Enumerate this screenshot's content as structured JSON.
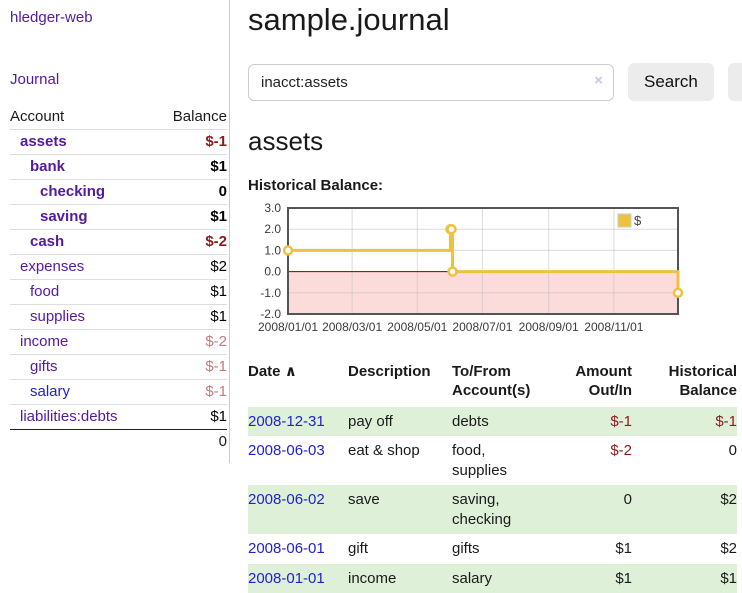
{
  "window": {
    "app_title": "hledger-web"
  },
  "colors": {
    "link_purple": "#541a9e",
    "link_blue": "#2222cc",
    "negative_strong": "#8c1b1b",
    "negative_soft": "#c47b7b",
    "row_stripe_green": "#dff0d8",
    "series_gold": "#edc240"
  },
  "sidebar": {
    "journal_label": "Journal",
    "table": {
      "headers": {
        "account": "Account",
        "balance": "Balance"
      },
      "rows": [
        {
          "name": "assets",
          "indent": 0,
          "bold": true,
          "blue": false,
          "balance": "$-1",
          "balance_style": "neg-strong"
        },
        {
          "name": "bank",
          "indent": 1,
          "bold": true,
          "blue": false,
          "balance": "$1",
          "balance_style": "pos"
        },
        {
          "name": "checking",
          "indent": 2,
          "bold": true,
          "blue": false,
          "balance": "0",
          "balance_style": "pos"
        },
        {
          "name": "saving",
          "indent": 2,
          "bold": true,
          "blue": false,
          "balance": "$1",
          "balance_style": "pos"
        },
        {
          "name": "cash",
          "indent": 1,
          "bold": true,
          "blue": false,
          "balance": "$-2",
          "balance_style": "neg-strong"
        },
        {
          "name": "expenses",
          "indent": 0,
          "bold": false,
          "blue": false,
          "balance": "$2",
          "balance_style": "pos"
        },
        {
          "name": "food",
          "indent": 1,
          "bold": false,
          "blue": false,
          "balance": "$1",
          "balance_style": "pos"
        },
        {
          "name": "supplies",
          "indent": 1,
          "bold": false,
          "blue": false,
          "balance": "$1",
          "balance_style": "pos"
        },
        {
          "name": "income",
          "indent": 0,
          "bold": false,
          "blue": false,
          "balance": "$-2",
          "balance_style": "neg-soft"
        },
        {
          "name": "gifts",
          "indent": 1,
          "bold": false,
          "blue": false,
          "balance": "$-1",
          "balance_style": "neg-soft"
        },
        {
          "name": "salary",
          "indent": 1,
          "bold": false,
          "blue": true,
          "balance": "$-1",
          "balance_style": "neg-soft"
        },
        {
          "name": "liabilities:debts",
          "indent": 0,
          "bold": false,
          "blue": false,
          "balance": "$1",
          "balance_style": "pos"
        }
      ],
      "total": "0"
    }
  },
  "main": {
    "title": "sample.journal",
    "search": {
      "value": "inacct:assets",
      "clear_icon": "×",
      "button_label": "Search",
      "help_label": "?"
    },
    "account_heading": "assets",
    "chart_heading": "Historical Balance:"
  },
  "chart_data": {
    "type": "line",
    "step": true,
    "title": "Historical Balance:",
    "xlabel": "",
    "ylabel": "",
    "ylim": [
      -2,
      3
    ],
    "xlim_days": [
      0,
      365
    ],
    "x_ticks": [
      {
        "label": "2008/01/01",
        "day": 0
      },
      {
        "label": "2008/03/01",
        "day": 60
      },
      {
        "label": "2008/05/01",
        "day": 121
      },
      {
        "label": "2008/07/01",
        "day": 182
      },
      {
        "label": "2008/09/01",
        "day": 244
      },
      {
        "label": "2008/11/01",
        "day": 305
      }
    ],
    "y_ticks": [
      {
        "label": "3.0",
        "value": 3
      },
      {
        "label": "2.0",
        "value": 2
      },
      {
        "label": "1.0",
        "value": 1
      },
      {
        "label": "0.0",
        "value": 0
      },
      {
        "label": "-1.0",
        "value": -1
      },
      {
        "label": "-2.0",
        "value": -2
      }
    ],
    "series": [
      {
        "name": "$",
        "color": "#edc240",
        "points": [
          {
            "date": "2008-01-01",
            "day": 0,
            "value": 1
          },
          {
            "date": "2008-06-01",
            "day": 152,
            "value": 2
          },
          {
            "date": "2008-06-02",
            "day": 153,
            "value": 2
          },
          {
            "date": "2008-06-03",
            "day": 154,
            "value": 0
          },
          {
            "date": "2008-12-31",
            "day": 365,
            "value": -1
          }
        ]
      }
    ],
    "negative_fill": "#fcdbdb",
    "zero_line_color": "#7d0000",
    "grid_color": "#bfbfbf",
    "border_color": "#545454",
    "legend": {
      "label": "$",
      "position": "top-right"
    }
  },
  "register": {
    "headers": {
      "date": "Date",
      "sort_icon": "∧",
      "description": "Description",
      "accounts_l1": "To/From",
      "accounts_l2": "Account(s)",
      "amount_l1": "Amount",
      "amount_l2": "Out/In",
      "balance_l1": "Historical",
      "balance_l2": "Balance"
    },
    "rows": [
      {
        "date": "2008-12-31",
        "description": "pay off",
        "accounts": "debts",
        "amount": "$-1",
        "amount_neg": true,
        "balance": "$-1",
        "balance_neg": true
      },
      {
        "date": "2008-06-03",
        "description": "eat & shop",
        "accounts": "food, supplies",
        "amount": "$-2",
        "amount_neg": true,
        "balance": "0",
        "balance_neg": false
      },
      {
        "date": "2008-06-02",
        "description": "save",
        "accounts": "saving, checking",
        "amount": "0",
        "amount_neg": false,
        "balance": "$2",
        "balance_neg": false
      },
      {
        "date": "2008-06-01",
        "description": "gift",
        "accounts": "gifts",
        "amount": "$1",
        "amount_neg": false,
        "balance": "$2",
        "balance_neg": false
      },
      {
        "date": "2008-01-01",
        "description": "income",
        "accounts": "salary",
        "amount": "$1",
        "amount_neg": false,
        "balance": "$1",
        "balance_neg": false
      }
    ]
  }
}
